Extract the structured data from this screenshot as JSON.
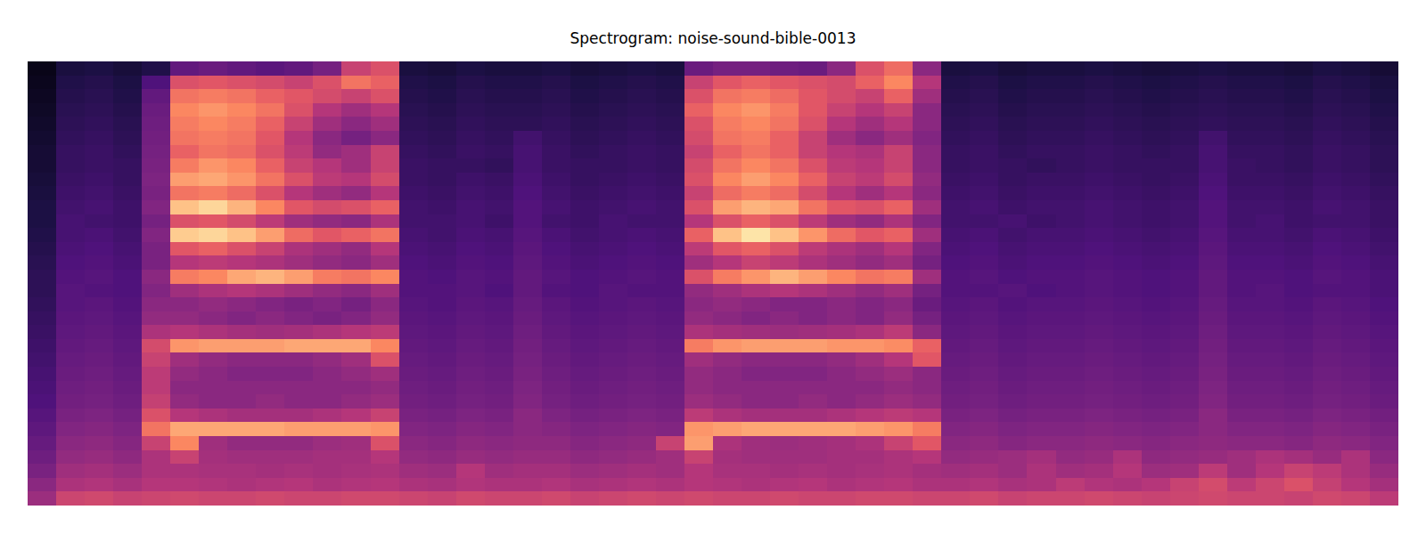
{
  "chart_data": {
    "type": "heatmap",
    "title": "Spectrogram: noise-sound-bible-0013",
    "zlim": [
      0,
      100
    ],
    "tick_labels": false,
    "cells": [
      [
        4,
        12,
        13,
        11,
        14,
        30,
        32,
        30,
        28,
        30,
        35,
        55,
        60,
        12,
        11,
        13,
        12,
        12,
        13,
        11,
        12,
        13,
        12,
        32,
        35,
        35,
        33,
        32,
        40,
        60,
        68,
        40,
        12,
        13,
        11,
        12,
        12,
        13,
        12,
        11,
        12,
        13,
        12,
        12,
        11,
        13,
        12,
        10
      ],
      [
        5,
        14,
        15,
        13,
        25,
        60,
        62,
        60,
        58,
        55,
        60,
        70,
        65,
        14,
        13,
        15,
        14,
        14,
        15,
        13,
        14,
        15,
        14,
        55,
        62,
        65,
        62,
        60,
        58,
        65,
        75,
        50,
        14,
        15,
        13,
        14,
        14,
        15,
        14,
        13,
        14,
        15,
        14,
        14,
        13,
        15,
        14,
        12
      ],
      [
        6,
        15,
        16,
        14,
        30,
        70,
        72,
        70,
        65,
        62,
        58,
        55,
        60,
        15,
        14,
        16,
        15,
        15,
        16,
        14,
        15,
        16,
        15,
        60,
        70,
        72,
        68,
        62,
        58,
        55,
        65,
        45,
        15,
        16,
        14,
        15,
        15,
        16,
        15,
        14,
        15,
        16,
        15,
        15,
        14,
        16,
        15,
        13
      ],
      [
        7,
        16,
        17,
        15,
        32,
        75,
        78,
        75,
        70,
        60,
        50,
        45,
        50,
        16,
        15,
        17,
        16,
        16,
        17,
        15,
        16,
        17,
        16,
        65,
        75,
        78,
        72,
        62,
        55,
        50,
        55,
        40,
        16,
        17,
        15,
        16,
        16,
        17,
        16,
        15,
        16,
        17,
        16,
        16,
        15,
        17,
        16,
        14
      ],
      [
        8,
        17,
        18,
        16,
        33,
        72,
        75,
        72,
        65,
        55,
        45,
        40,
        45,
        17,
        16,
        18,
        17,
        17,
        18,
        16,
        17,
        18,
        17,
        60,
        72,
        75,
        70,
        60,
        50,
        45,
        50,
        40,
        17,
        18,
        16,
        17,
        17,
        18,
        17,
        16,
        17,
        18,
        17,
        17,
        16,
        18,
        17,
        15
      ],
      [
        9,
        18,
        19,
        17,
        34,
        70,
        72,
        70,
        62,
        50,
        40,
        35,
        40,
        18,
        17,
        19,
        18,
        22,
        19,
        17,
        18,
        19,
        18,
        58,
        70,
        72,
        65,
        55,
        45,
        40,
        45,
        38,
        18,
        19,
        17,
        18,
        18,
        19,
        18,
        17,
        18,
        22,
        18,
        18,
        17,
        19,
        18,
        16
      ],
      [
        10,
        19,
        20,
        18,
        35,
        65,
        70,
        68,
        60,
        52,
        42,
        45,
        55,
        19,
        18,
        20,
        19,
        23,
        20,
        18,
        19,
        20,
        19,
        55,
        65,
        70,
        65,
        55,
        50,
        48,
        55,
        40,
        19,
        20,
        18,
        19,
        19,
        20,
        19,
        18,
        19,
        23,
        19,
        19,
        18,
        20,
        19,
        17
      ],
      [
        10,
        19,
        20,
        19,
        36,
        72,
        78,
        75,
        65,
        55,
        50,
        45,
        55,
        20,
        19,
        19,
        18,
        23,
        20,
        19,
        19,
        20,
        19,
        58,
        70,
        75,
        70,
        60,
        52,
        50,
        55,
        40,
        19,
        20,
        19,
        18,
        19,
        20,
        19,
        19,
        19,
        23,
        20,
        19,
        18,
        20,
        19,
        17
      ],
      [
        11,
        20,
        21,
        19,
        37,
        80,
        82,
        78,
        70,
        60,
        52,
        50,
        58,
        20,
        19,
        21,
        20,
        24,
        21,
        19,
        20,
        21,
        20,
        60,
        75,
        80,
        75,
        65,
        55,
        52,
        58,
        42,
        20,
        21,
        19,
        20,
        20,
        21,
        20,
        19,
        20,
        24,
        20,
        20,
        19,
        21,
        20,
        18
      ],
      [
        12,
        21,
        22,
        20,
        36,
        70,
        72,
        68,
        60,
        50,
        45,
        42,
        50,
        21,
        20,
        22,
        21,
        25,
        22,
        20,
        21,
        22,
        21,
        55,
        68,
        72,
        68,
        58,
        50,
        45,
        50,
        40,
        21,
        22,
        20,
        21,
        21,
        22,
        21,
        20,
        21,
        25,
        21,
        21,
        20,
        22,
        21,
        19
      ],
      [
        13,
        22,
        23,
        21,
        38,
        88,
        92,
        85,
        75,
        62,
        58,
        60,
        65,
        22,
        21,
        23,
        22,
        26,
        23,
        21,
        22,
        23,
        22,
        60,
        80,
        85,
        82,
        70,
        62,
        60,
        65,
        45,
        22,
        23,
        21,
        22,
        22,
        23,
        22,
        21,
        22,
        26,
        22,
        22,
        21,
        23,
        22,
        20
      ],
      [
        13,
        23,
        22,
        21,
        35,
        60,
        62,
        58,
        52,
        45,
        42,
        40,
        48,
        22,
        22,
        23,
        21,
        26,
        22,
        21,
        23,
        22,
        22,
        50,
        60,
        65,
        60,
        52,
        45,
        42,
        48,
        38,
        22,
        22,
        23,
        21,
        22,
        23,
        22,
        21,
        22,
        26,
        22,
        23,
        21,
        22,
        22,
        20
      ],
      [
        14,
        23,
        24,
        22,
        38,
        90,
        92,
        88,
        80,
        68,
        62,
        65,
        70,
        23,
        22,
        24,
        23,
        27,
        24,
        22,
        23,
        24,
        23,
        65,
        88,
        95,
        88,
        78,
        68,
        62,
        65,
        45,
        23,
        24,
        22,
        23,
        23,
        24,
        23,
        22,
        23,
        27,
        23,
        23,
        22,
        24,
        23,
        21
      ],
      [
        15,
        24,
        25,
        23,
        36,
        62,
        65,
        60,
        55,
        48,
        45,
        42,
        50,
        24,
        23,
        25,
        24,
        28,
        25,
        23,
        24,
        25,
        24,
        52,
        62,
        65,
        60,
        52,
        48,
        45,
        50,
        38,
        24,
        25,
        23,
        24,
        24,
        25,
        24,
        23,
        24,
        28,
        24,
        24,
        23,
        25,
        24,
        22
      ],
      [
        16,
        25,
        26,
        24,
        36,
        50,
        52,
        50,
        48,
        45,
        42,
        40,
        45,
        25,
        24,
        26,
        25,
        29,
        26,
        24,
        25,
        26,
        25,
        45,
        50,
        55,
        52,
        48,
        45,
        42,
        45,
        35,
        25,
        26,
        24,
        25,
        25,
        26,
        25,
        24,
        25,
        29,
        25,
        25,
        24,
        26,
        25,
        23
      ],
      [
        17,
        26,
        27,
        25,
        40,
        72,
        75,
        82,
        85,
        80,
        72,
        70,
        75,
        26,
        25,
        27,
        26,
        30,
        27,
        25,
        26,
        27,
        26,
        60,
        72,
        78,
        85,
        80,
        75,
        70,
        72,
        45,
        26,
        27,
        25,
        26,
        26,
        27,
        26,
        25,
        26,
        30,
        26,
        26,
        25,
        27,
        26,
        24
      ],
      [
        17,
        27,
        26,
        25,
        38,
        45,
        48,
        50,
        48,
        45,
        42,
        40,
        45,
        26,
        26,
        27,
        25,
        30,
        26,
        25,
        27,
        26,
        26,
        42,
        45,
        48,
        50,
        48,
        45,
        42,
        45,
        35,
        26,
        26,
        27,
        25,
        26,
        27,
        26,
        25,
        26,
        30,
        26,
        27,
        25,
        26,
        26,
        24
      ],
      [
        18,
        27,
        28,
        26,
        40,
        40,
        42,
        40,
        38,
        36,
        38,
        35,
        40,
        27,
        26,
        28,
        27,
        31,
        28,
        26,
        27,
        28,
        27,
        40,
        42,
        40,
        38,
        38,
        40,
        38,
        40,
        32,
        27,
        28,
        26,
        27,
        27,
        28,
        27,
        26,
        27,
        31,
        27,
        27,
        26,
        28,
        27,
        25
      ],
      [
        19,
        28,
        29,
        27,
        42,
        42,
        40,
        38,
        40,
        38,
        36,
        38,
        42,
        28,
        27,
        29,
        28,
        32,
        29,
        27,
        28,
        29,
        28,
        42,
        40,
        38,
        40,
        38,
        40,
        38,
        42,
        35,
        28,
        29,
        27,
        28,
        28,
        29,
        28,
        27,
        28,
        32,
        28,
        28,
        27,
        29,
        28,
        26
      ],
      [
        20,
        29,
        30,
        28,
        48,
        50,
        48,
        46,
        45,
        46,
        48,
        50,
        52,
        29,
        28,
        30,
        29,
        33,
        30,
        28,
        29,
        30,
        29,
        48,
        46,
        45,
        44,
        45,
        46,
        48,
        52,
        40,
        29,
        30,
        28,
        29,
        29,
        30,
        29,
        28,
        29,
        33,
        29,
        29,
        28,
        30,
        29,
        27
      ],
      [
        21,
        30,
        31,
        29,
        58,
        78,
        80,
        80,
        80,
        82,
        82,
        82,
        75,
        30,
        29,
        31,
        30,
        34,
        31,
        29,
        30,
        31,
        30,
        72,
        78,
        80,
        80,
        80,
        78,
        78,
        76,
        65,
        30,
        31,
        29,
        30,
        30,
        31,
        30,
        29,
        30,
        34,
        30,
        30,
        29,
        31,
        30,
        28
      ],
      [
        22,
        31,
        32,
        30,
        55,
        45,
        42,
        40,
        40,
        40,
        42,
        45,
        60,
        31,
        30,
        32,
        31,
        35,
        32,
        30,
        31,
        32,
        31,
        45,
        42,
        40,
        40,
        40,
        42,
        45,
        50,
        62,
        31,
        32,
        30,
        31,
        31,
        32,
        31,
        30,
        31,
        35,
        31,
        31,
        30,
        32,
        31,
        29
      ],
      [
        23,
        32,
        33,
        31,
        52,
        42,
        40,
        38,
        38,
        38,
        40,
        42,
        45,
        32,
        31,
        33,
        32,
        36,
        33,
        31,
        32,
        33,
        32,
        42,
        40,
        38,
        38,
        38,
        40,
        42,
        44,
        40,
        32,
        33,
        31,
        32,
        32,
        33,
        32,
        31,
        32,
        36,
        32,
        32,
        31,
        33,
        32,
        30
      ],
      [
        24,
        33,
        34,
        32,
        52,
        40,
        40,
        40,
        40,
        40,
        40,
        40,
        42,
        33,
        32,
        34,
        33,
        37,
        34,
        32,
        33,
        34,
        33,
        42,
        40,
        40,
        40,
        40,
        40,
        40,
        42,
        40,
        33,
        34,
        32,
        33,
        33,
        34,
        33,
        32,
        33,
        37,
        33,
        33,
        32,
        34,
        33,
        31
      ],
      [
        25,
        34,
        35,
        33,
        54,
        42,
        40,
        40,
        42,
        40,
        40,
        42,
        44,
        34,
        33,
        35,
        34,
        38,
        35,
        33,
        34,
        35,
        34,
        44,
        42,
        40,
        40,
        42,
        40,
        42,
        44,
        42,
        34,
        35,
        33,
        34,
        34,
        35,
        34,
        33,
        34,
        38,
        34,
        34,
        33,
        35,
        34,
        32
      ],
      [
        27,
        36,
        37,
        35,
        60,
        50,
        48,
        46,
        46,
        46,
        48,
        50,
        55,
        36,
        35,
        37,
        36,
        40,
        37,
        35,
        36,
        37,
        36,
        52,
        48,
        46,
        46,
        46,
        48,
        50,
        52,
        50,
        36,
        37,
        35,
        36,
        36,
        37,
        36,
        35,
        36,
        40,
        36,
        36,
        35,
        37,
        36,
        34
      ],
      [
        29,
        38,
        39,
        37,
        70,
        82,
        82,
        82,
        82,
        80,
        80,
        80,
        78,
        38,
        37,
        39,
        38,
        40,
        39,
        37,
        38,
        39,
        38,
        78,
        80,
        82,
        82,
        82,
        82,
        80,
        78,
        72,
        38,
        39,
        37,
        38,
        38,
        39,
        38,
        37,
        38,
        40,
        38,
        38,
        37,
        39,
        38,
        36
      ],
      [
        31,
        40,
        41,
        39,
        55,
        75,
        45,
        42,
        42,
        42,
        44,
        45,
        60,
        40,
        39,
        41,
        40,
        41,
        41,
        39,
        40,
        41,
        55,
        80,
        48,
        45,
        44,
        45,
        46,
        48,
        55,
        62,
        40,
        41,
        39,
        40,
        40,
        41,
        40,
        39,
        40,
        41,
        40,
        40,
        39,
        41,
        40,
        38
      ],
      [
        33,
        42,
        43,
        41,
        48,
        55,
        46,
        45,
        45,
        45,
        46,
        46,
        50,
        42,
        41,
        43,
        42,
        43,
        43,
        41,
        42,
        43,
        45,
        55,
        46,
        45,
        45,
        45,
        46,
        46,
        48,
        50,
        42,
        43,
        44,
        46,
        42,
        43,
        48,
        41,
        42,
        43,
        45,
        48,
        46,
        43,
        48,
        40
      ],
      [
        36,
        45,
        46,
        44,
        48,
        48,
        47,
        47,
        46,
        47,
        46,
        47,
        48,
        45,
        44,
        50,
        45,
        46,
        46,
        44,
        45,
        46,
        45,
        50,
        47,
        47,
        46,
        47,
        46,
        47,
        48,
        46,
        45,
        46,
        44,
        48,
        45,
        46,
        50,
        44,
        45,
        52,
        45,
        50,
        55,
        52,
        48,
        43
      ],
      [
        40,
        48,
        49,
        47,
        50,
        50,
        49,
        48,
        49,
        50,
        48,
        49,
        50,
        48,
        47,
        49,
        48,
        48,
        49,
        47,
        48,
        49,
        48,
        50,
        49,
        48,
        49,
        50,
        48,
        49,
        50,
        48,
        48,
        49,
        47,
        48,
        52,
        49,
        48,
        50,
        55,
        58,
        52,
        56,
        60,
        54,
        50,
        46
      ],
      [
        44,
        56,
        57,
        55,
        56,
        57,
        56,
        56,
        57,
        56,
        56,
        57,
        57,
        56,
        55,
        57,
        56,
        56,
        57,
        55,
        56,
        57,
        56,
        57,
        56,
        56,
        57,
        56,
        56,
        57,
        57,
        56,
        56,
        57,
        55,
        56,
        56,
        57,
        56,
        55,
        56,
        57,
        56,
        56,
        55,
        57,
        56,
        52
      ]
    ]
  }
}
